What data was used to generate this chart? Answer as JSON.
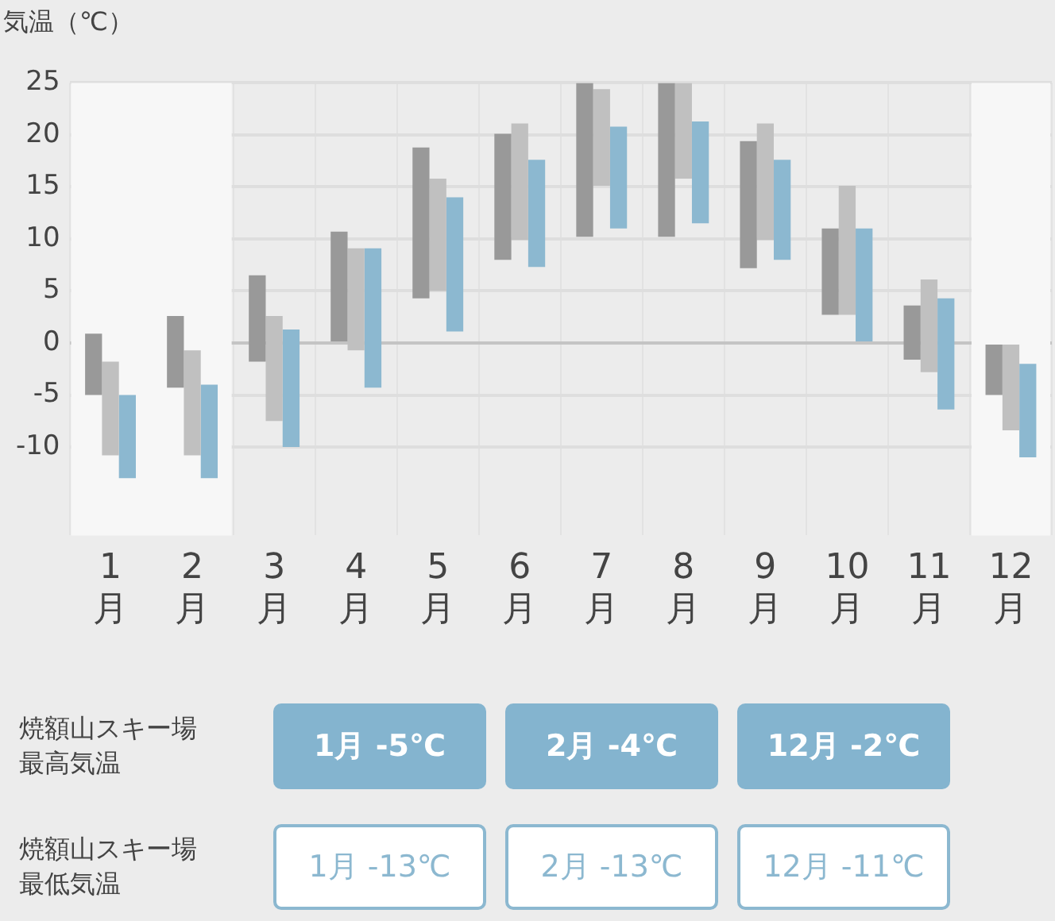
{
  "chart_data": {
    "type": "bar",
    "ylabel": "気温（℃）",
    "categories": [
      "1月",
      "2月",
      "3月",
      "4月",
      "5月",
      "6月",
      "7月",
      "8月",
      "9月",
      "10月",
      "11月",
      "12月"
    ],
    "series": [
      {
        "color": "#999999",
        "base": [
          -5,
          -4.3,
          -1.8,
          0,
          4.3,
          8,
          10.2,
          10.2,
          7.2,
          2.7,
          -1.6,
          -5
        ],
        "values": [
          5.9,
          6.9,
          8.3,
          10.7,
          14.5,
          12.1,
          14.8,
          14.8,
          12.2,
          8.3,
          5.2,
          5
        ]
      },
      {
        "color": "#c0c0c0",
        "base": [
          -10.8,
          -10.8,
          -7.5,
          -0.7,
          5,
          9.9,
          15.1,
          15.8,
          9.9,
          2.7,
          -2.8,
          -8.4
        ],
        "values": [
          9,
          10.1,
          10.1,
          9.8,
          10.8,
          11.2,
          9.3,
          9.2,
          11.2,
          12.4,
          8.9,
          8.4
        ]
      },
      {
        "color": "#8cb8d0",
        "base": [
          -13,
          -13,
          -10,
          -4.3,
          1.1,
          7.3,
          11,
          11.5,
          8,
          0,
          -6.4,
          -11
        ],
        "values": [
          8,
          9,
          11.3,
          13.4,
          12.9,
          10.3,
          9.8,
          9.8,
          9.6,
          11,
          10.7,
          9
        ]
      }
    ],
    "ylim": [
      -18.5,
      25
    ],
    "yticks": [
      -10,
      -5,
      0,
      5,
      10,
      15,
      20,
      25
    ],
    "grid": true,
    "legend": false,
    "bands": [
      {
        "axis": "x",
        "from": "1月",
        "to": "2月",
        "color": "#f7f7f7"
      },
      {
        "axis": "x",
        "from": "12月",
        "to": "12月",
        "color": "#f7f7f7"
      }
    ],
    "annotations": [
      "焼額山スキー場最高気温",
      "1月 -5℃",
      "2月 -4℃",
      "12月 -2℃",
      "焼額山スキー場最低気温",
      "1月 -13℃",
      "2月 -13℃",
      "12月 -11℃"
    ]
  }
}
